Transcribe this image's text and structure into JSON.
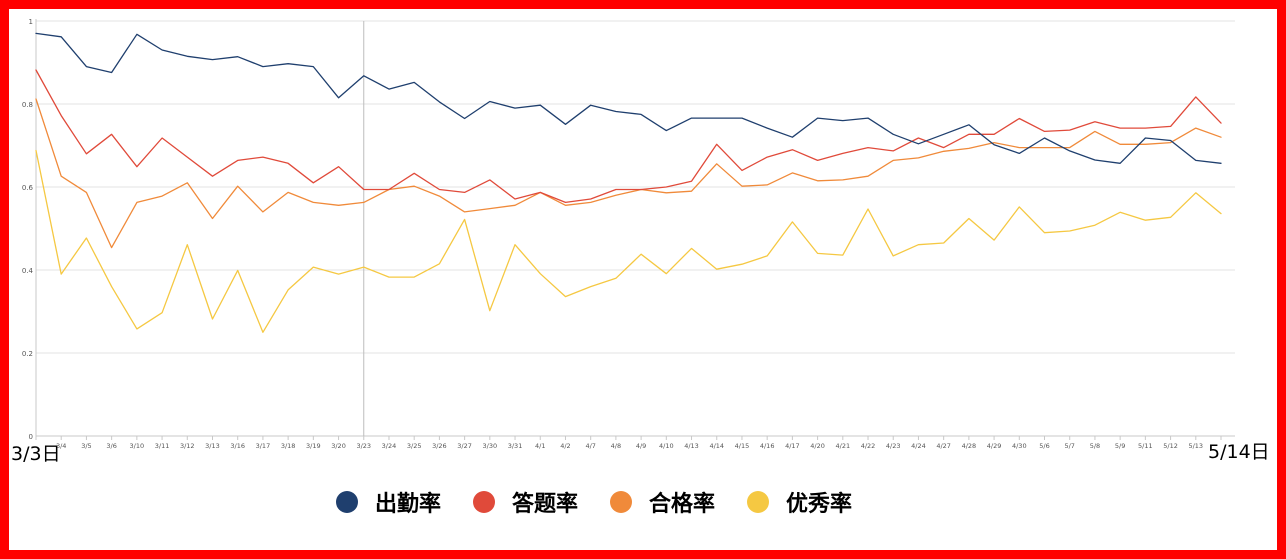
{
  "chart_data": {
    "type": "line",
    "yticks": [
      "1",
      "0.8",
      "0.6",
      "0.4",
      "0.2",
      "0"
    ],
    "ylim": [
      0,
      1
    ],
    "grid": true,
    "legend_position": "bottom",
    "x": [
      "3/3",
      "3/4",
      "3/5",
      "3/6",
      "3/10",
      "3/11",
      "3/12",
      "3/13",
      "3/16",
      "3/17",
      "3/18",
      "3/19",
      "3/20",
      "3/23",
      "3/24",
      "3/25",
      "3/26",
      "3/27",
      "3/30",
      "3/31",
      "4/1",
      "4/2",
      "4/7",
      "4/8",
      "4/9",
      "4/10",
      "4/13",
      "4/14",
      "4/15",
      "4/16",
      "4/17",
      "4/20",
      "4/21",
      "4/22",
      "4/23",
      "4/24",
      "4/27",
      "4/28",
      "4/29",
      "4/30",
      "5/6",
      "5/7",
      "5/8",
      "5/9",
      "5/11",
      "5/12",
      "5/13",
      "5/14"
    ],
    "xlabels_visible": [
      "",
      "3/4",
      "3/5",
      "3/6",
      "3/10",
      "3/11",
      "3/12",
      "3/13",
      "3/16",
      "3/17",
      "3/18",
      "3/19",
      "3/20",
      "3/23",
      "3/24",
      "3/25",
      "3/26",
      "3/27",
      "3/30",
      "3/31",
      "4/1",
      "4/2",
      "4/7",
      "4/8",
      "4/9",
      "4/10",
      "4/13",
      "4/14",
      "4/15",
      "4/16",
      "4/17",
      "4/20",
      "4/21",
      "4/22",
      "4/23",
      "4/24",
      "4/27",
      "4/28",
      "4/29",
      "4/30",
      "5/6",
      "5/7",
      "5/8",
      "5/9",
      "5/11",
      "5/12",
      "5/13",
      ""
    ],
    "start_label": "3/3日",
    "end_label": "5/14日",
    "series": [
      {
        "name": "出勤率",
        "color": "#1f3f6e",
        "values": [
          0.97,
          0.962,
          0.89,
          0.876,
          0.968,
          0.93,
          0.915,
          0.907,
          0.914,
          0.89,
          0.897,
          0.89,
          0.815,
          0.868,
          0.836,
          0.852,
          0.805,
          0.765,
          0.806,
          0.79,
          0.797,
          0.751,
          0.797,
          0.782,
          0.775,
          0.736,
          0.766,
          0.766,
          0.766,
          0.742,
          0.72,
          0.766,
          0.76,
          0.766,
          0.727,
          0.704,
          0.727,
          0.75,
          0.702,
          0.681,
          0.718,
          0.687,
          0.665,
          0.657,
          0.718,
          0.712,
          0.664,
          0.657
        ]
      },
      {
        "name": "答题率",
        "color": "#e04a3a",
        "values": [
          0.882,
          0.772,
          0.68,
          0.727,
          0.649,
          0.718,
          0.672,
          0.626,
          0.664,
          0.672,
          0.657,
          0.61,
          0.649,
          0.594,
          0.594,
          0.633,
          0.594,
          0.587,
          0.617,
          0.571,
          0.587,
          0.563,
          0.571,
          0.594,
          0.594,
          0.6,
          0.614,
          0.703,
          0.64,
          0.672,
          0.69,
          0.664,
          0.681,
          0.695,
          0.687,
          0.718,
          0.695,
          0.727,
          0.727,
          0.765,
          0.734,
          0.737,
          0.757,
          0.742,
          0.742,
          0.746,
          0.817,
          0.754
        ]
      },
      {
        "name": "合格率",
        "color": "#f08a3a",
        "values": [
          0.812,
          0.626,
          0.587,
          0.454,
          0.563,
          0.578,
          0.61,
          0.524,
          0.602,
          0.54,
          0.587,
          0.563,
          0.556,
          0.563,
          0.594,
          0.602,
          0.578,
          0.54,
          0.548,
          0.556,
          0.587,
          0.556,
          0.563,
          0.58,
          0.594,
          0.586,
          0.59,
          0.656,
          0.602,
          0.605,
          0.634,
          0.615,
          0.617,
          0.626,
          0.664,
          0.67,
          0.686,
          0.693,
          0.707,
          0.695,
          0.695,
          0.695,
          0.734,
          0.703,
          0.703,
          0.707,
          0.742,
          0.72
        ]
      },
      {
        "name": "优秀率",
        "color": "#f5c842",
        "values": [
          0.688,
          0.39,
          0.477,
          0.36,
          0.258,
          0.297,
          0.461,
          0.282,
          0.399,
          0.25,
          0.352,
          0.407,
          0.39,
          0.407,
          0.383,
          0.383,
          0.415,
          0.522,
          0.302,
          0.461,
          0.391,
          0.336,
          0.36,
          0.38,
          0.438,
          0.391,
          0.452,
          0.402,
          0.414,
          0.434,
          0.516,
          0.44,
          0.436,
          0.547,
          0.434,
          0.461,
          0.465,
          0.524,
          0.472,
          0.552,
          0.49,
          0.494,
          0.508,
          0.539,
          0.52,
          0.527,
          0.586,
          0.536
        ]
      }
    ]
  },
  "cursor_line_index": 13
}
